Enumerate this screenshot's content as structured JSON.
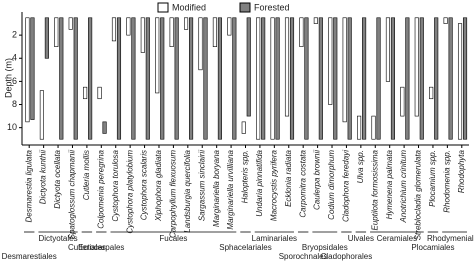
{
  "chart_data": {
    "type": "range-bar",
    "y_label": "Depth (m)",
    "ylim": [
      0,
      11.5
    ],
    "yticks": [
      2,
      4,
      6,
      8,
      10
    ],
    "y_inverted": true,
    "legend_position": "top",
    "categories": [
      "Desmarestia ligulata",
      "Dictyota kunthii",
      "Dictyota ocellata",
      "Spatoglossum chapmanii",
      "Cutleria mollis",
      "Colpomenia peregrina",
      "Cystophora torulosa",
      "Cystophora platylobium",
      "Cystophora scalaris",
      "Xiphophora gladiata",
      "Carpophyllum flexuosum",
      "Landsburgia quercifolia",
      "Sargassum sinclairii",
      "Marginariella boryana",
      "Marginariella urvilliana",
      "Halopteris spp.",
      "Undaria pinnatifida",
      "Macrocystis pyrifera",
      "Ecklonia radiata",
      "Carpomitra costata",
      "Caulerpa brownii",
      "Codium dimorphum",
      "Cladophora feredayi",
      "Ulva spp.",
      "Euptilota formosissima",
      "Hymenena palmata",
      "Anotrichium crinitum",
      "Streblocladia glomerulata",
      "Plocamium spp.",
      "Rhodomenia spp.",
      "Rhodophyta"
    ],
    "orders": [
      "Desmarestiales",
      "Dictyotales",
      "Cutleriales",
      "Ectocarpales",
      "Fucales",
      "Sphacelariales",
      "Laminariales",
      "Sporochnales",
      "Bryopsidales",
      "Cladophorales",
      "Ulvales",
      "Ceramiales",
      "Plocamiales",
      "Rhodymeniales"
    ],
    "series": [
      {
        "name": "Modified",
        "color": "#ffffff",
        "values": [
          [
            0.5,
            9.5
          ],
          [
            6.8,
            11
          ],
          [
            0.5,
            3
          ],
          [
            0.5,
            1.5
          ],
          [
            6.5,
            7.5
          ],
          [
            6.5,
            7.5
          ],
          [
            0.5,
            2.5
          ],
          [
            0.5,
            2
          ],
          [
            0.5,
            3.5
          ],
          [
            0.5,
            7
          ],
          [
            0.5,
            3
          ],
          [
            0.5,
            1.5
          ],
          [
            0.5,
            5
          ],
          [
            0.5,
            3
          ],
          [
            0.5,
            2
          ],
          [
            9.5,
            10.5
          ],
          [
            0.5,
            11
          ],
          [
            0.5,
            11
          ],
          [
            0.5,
            9
          ],
          [
            0.5,
            3
          ],
          [
            0.5,
            1
          ],
          [
            0.5,
            8
          ],
          [
            0.5,
            9.5
          ],
          [
            9,
            11
          ],
          [
            9,
            11
          ],
          [
            0.5,
            6
          ],
          [
            6.5,
            9
          ],
          [
            0.5,
            9
          ],
          [
            6.5,
            7.5
          ],
          [
            0.5,
            1
          ],
          [
            1,
            11
          ]
        ]
      },
      {
        "name": "Forested",
        "color": "#808080",
        "values": [
          [
            0.5,
            9.3
          ],
          [
            0.5,
            4
          ],
          [
            0.5,
            11
          ],
          [
            0.5,
            11
          ],
          [
            0.5,
            11
          ],
          [
            9.5,
            10.5
          ],
          [
            0.5,
            11
          ],
          [
            0.5,
            11
          ],
          [
            0.5,
            11
          ],
          [
            0.5,
            11
          ],
          [
            0.5,
            11
          ],
          [
            0.5,
            11
          ],
          [
            0.5,
            11
          ],
          [
            0.5,
            11
          ],
          [
            0.5,
            11
          ],
          [
            0.5,
            9
          ],
          [
            0.5,
            11
          ],
          [
            0.5,
            11
          ],
          [
            0.5,
            11
          ],
          [
            0.5,
            11
          ],
          [
            0.5,
            11
          ],
          [
            0.5,
            11
          ],
          [
            0.5,
            11
          ],
          [
            0.5,
            11
          ],
          [
            0.5,
            11
          ],
          [
            0.5,
            11
          ],
          [
            0.5,
            11
          ],
          [
            0.5,
            11
          ],
          [
            0.5,
            11
          ],
          [
            0.5,
            11
          ],
          [
            0.5,
            11
          ]
        ]
      }
    ]
  }
}
